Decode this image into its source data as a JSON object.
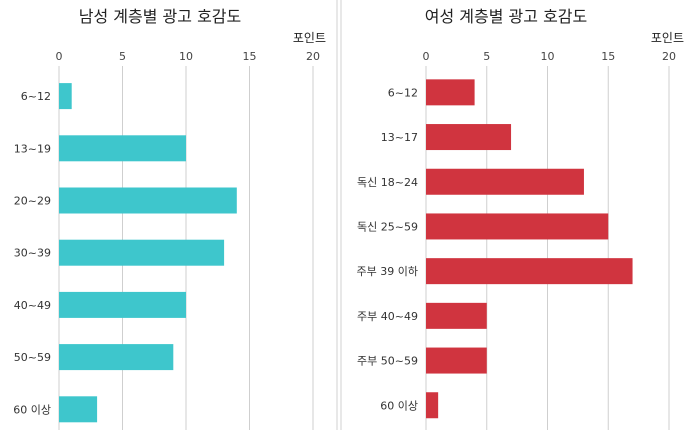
{
  "chart_data": [
    {
      "type": "bar",
      "orientation": "horizontal",
      "title": "남성 계층별 광고 호감도",
      "unit": "포인트",
      "categories": [
        "6~12",
        "13~19",
        "20~29",
        "30~39",
        "40~49",
        "50~59",
        "60 이상"
      ],
      "values": [
        1,
        10,
        14,
        13,
        10,
        9,
        3
      ],
      "xlim": [
        0,
        20
      ],
      "ticks": [
        0,
        5,
        10,
        15,
        20
      ],
      "grid": true,
      "color": "#3ec6cc"
    },
    {
      "type": "bar",
      "orientation": "horizontal",
      "title": "여성 계층별 광고 호감도",
      "unit": "포인트",
      "categories": [
        "6~12",
        "13~17",
        "독신 18~24",
        "독신 25~59",
        "주부 39 이하",
        "주부 40~49",
        "주부 50~59",
        "60 이상"
      ],
      "values": [
        4,
        7,
        13,
        15,
        17,
        5,
        5,
        1
      ],
      "xlim": [
        0,
        20
      ],
      "ticks": [
        0,
        5,
        10,
        15,
        20
      ],
      "grid": true,
      "color": "#d0343f"
    }
  ]
}
